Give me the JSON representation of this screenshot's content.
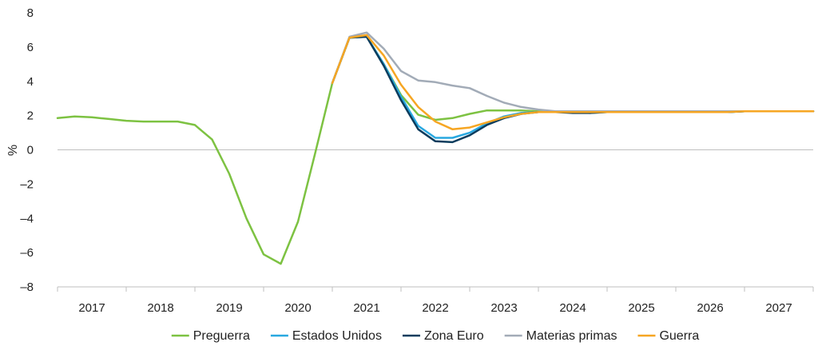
{
  "chart_data": {
    "type": "line",
    "title": "",
    "xlabel": "",
    "ylabel": "%",
    "ylim": [
      -8,
      8
    ],
    "yticks": [
      8,
      6,
      4,
      2,
      0,
      -2,
      -4,
      -6,
      -8
    ],
    "ytick_labels": [
      "8",
      "6",
      "4",
      "2",
      "0",
      "–2",
      "–4",
      "–6",
      "–8"
    ],
    "xlim": [
      2016.75,
      2027.75
    ],
    "categories": [
      "2017",
      "2018",
      "2019",
      "2020",
      "2021",
      "2022",
      "2023",
      "2024",
      "2025",
      "2026",
      "2027"
    ],
    "grid": false,
    "legend_position": "bottom",
    "series": [
      {
        "name": "Preguerra",
        "color": "#7dc242",
        "x": [
          2016.75,
          2017.0,
          2017.25,
          2017.5,
          2017.75,
          2018.0,
          2018.25,
          2018.5,
          2018.75,
          2019.0,
          2019.25,
          2019.5,
          2019.75,
          2020.0,
          2020.25,
          2020.5,
          2020.75,
          2021.0,
          2021.25,
          2021.5,
          2021.75,
          2022.0,
          2022.25,
          2022.5,
          2022.75,
          2023.0,
          2023.25,
          2023.5,
          2023.75,
          2024.0,
          2024.25,
          2024.5,
          2024.75,
          2025.0,
          2025.25,
          2025.5,
          2025.75,
          2026.0,
          2026.25,
          2026.5,
          2026.75,
          2027.0,
          2027.25,
          2027.5,
          2027.75
        ],
        "values": [
          1.85,
          1.95,
          1.9,
          1.8,
          1.7,
          1.65,
          1.65,
          1.65,
          1.45,
          0.6,
          -1.4,
          -4.0,
          -6.1,
          -6.65,
          -4.2,
          -0.2,
          3.9,
          6.55,
          6.6,
          5.0,
          3.2,
          2.05,
          1.75,
          1.85,
          2.1,
          2.3,
          2.3,
          2.3,
          2.25,
          2.2,
          2.2,
          2.2,
          2.2,
          2.2,
          2.2,
          2.2,
          2.2,
          2.2,
          2.2,
          2.2,
          2.25,
          2.25,
          2.25,
          2.25,
          2.25
        ]
      },
      {
        "name": "Estados Unidos",
        "color": "#29a8e0",
        "x": [
          2020.75,
          2021.0,
          2021.25,
          2021.5,
          2021.75,
          2022.0,
          2022.25,
          2022.5,
          2022.75,
          2023.0,
          2023.25,
          2023.5,
          2023.75,
          2024.0,
          2024.25,
          2024.5,
          2024.75,
          2025.0,
          2025.25,
          2025.5,
          2025.75,
          2026.0,
          2026.25,
          2026.5,
          2026.75,
          2027.0,
          2027.25,
          2027.5,
          2027.75
        ],
        "values": [
          3.9,
          6.55,
          6.6,
          5.0,
          3.1,
          1.4,
          0.7,
          0.7,
          1.0,
          1.55,
          1.95,
          2.15,
          2.2,
          2.2,
          2.2,
          2.15,
          2.2,
          2.2,
          2.2,
          2.2,
          2.2,
          2.2,
          2.2,
          2.2,
          2.25,
          2.25,
          2.25,
          2.25,
          2.25
        ]
      },
      {
        "name": "Zona Euro",
        "color": "#0b3c5d",
        "x": [
          2020.75,
          2021.0,
          2021.25,
          2021.5,
          2021.75,
          2022.0,
          2022.25,
          2022.5,
          2022.75,
          2023.0,
          2023.25,
          2023.5,
          2023.75,
          2024.0,
          2024.25,
          2024.5,
          2024.75,
          2025.0,
          2025.25,
          2025.5,
          2025.75,
          2026.0,
          2026.25,
          2026.5,
          2026.75,
          2027.0,
          2027.25,
          2027.5,
          2027.75
        ],
        "values": [
          3.9,
          6.55,
          6.6,
          4.9,
          2.9,
          1.2,
          0.5,
          0.45,
          0.85,
          1.45,
          1.85,
          2.1,
          2.2,
          2.2,
          2.15,
          2.15,
          2.2,
          2.2,
          2.2,
          2.2,
          2.2,
          2.2,
          2.2,
          2.2,
          2.25,
          2.25,
          2.25,
          2.25,
          2.25
        ]
      },
      {
        "name": "Materias primas",
        "color": "#a2abb7",
        "x": [
          2020.75,
          2021.0,
          2021.25,
          2021.5,
          2021.75,
          2022.0,
          2022.25,
          2022.5,
          2022.75,
          2023.0,
          2023.25,
          2023.5,
          2023.75,
          2024.0,
          2024.25,
          2024.5,
          2024.75,
          2025.0,
          2025.25,
          2025.5,
          2025.75,
          2026.0,
          2026.25,
          2026.5,
          2026.75,
          2027.0,
          2027.25,
          2027.5,
          2027.75
        ],
        "values": [
          3.9,
          6.6,
          6.85,
          5.9,
          4.6,
          4.05,
          3.95,
          3.75,
          3.6,
          3.15,
          2.75,
          2.5,
          2.35,
          2.25,
          2.25,
          2.25,
          2.25,
          2.25,
          2.25,
          2.25,
          2.25,
          2.25,
          2.25,
          2.25,
          2.25,
          2.25,
          2.25,
          2.25,
          2.25
        ]
      },
      {
        "name": "Guerra",
        "color": "#f6a623",
        "x": [
          2020.75,
          2021.0,
          2021.25,
          2021.5,
          2021.75,
          2022.0,
          2022.25,
          2022.5,
          2022.75,
          2023.0,
          2023.25,
          2023.5,
          2023.75,
          2024.0,
          2024.25,
          2024.5,
          2024.75,
          2025.0,
          2025.25,
          2025.5,
          2025.75,
          2026.0,
          2026.25,
          2026.5,
          2026.75,
          2027.0,
          2027.25,
          2027.5,
          2027.75
        ],
        "values": [
          3.9,
          6.55,
          6.7,
          5.5,
          3.8,
          2.5,
          1.65,
          1.2,
          1.3,
          1.6,
          1.9,
          2.1,
          2.2,
          2.2,
          2.2,
          2.2,
          2.2,
          2.2,
          2.2,
          2.2,
          2.2,
          2.2,
          2.2,
          2.2,
          2.25,
          2.25,
          2.25,
          2.25,
          2.25
        ]
      }
    ]
  }
}
